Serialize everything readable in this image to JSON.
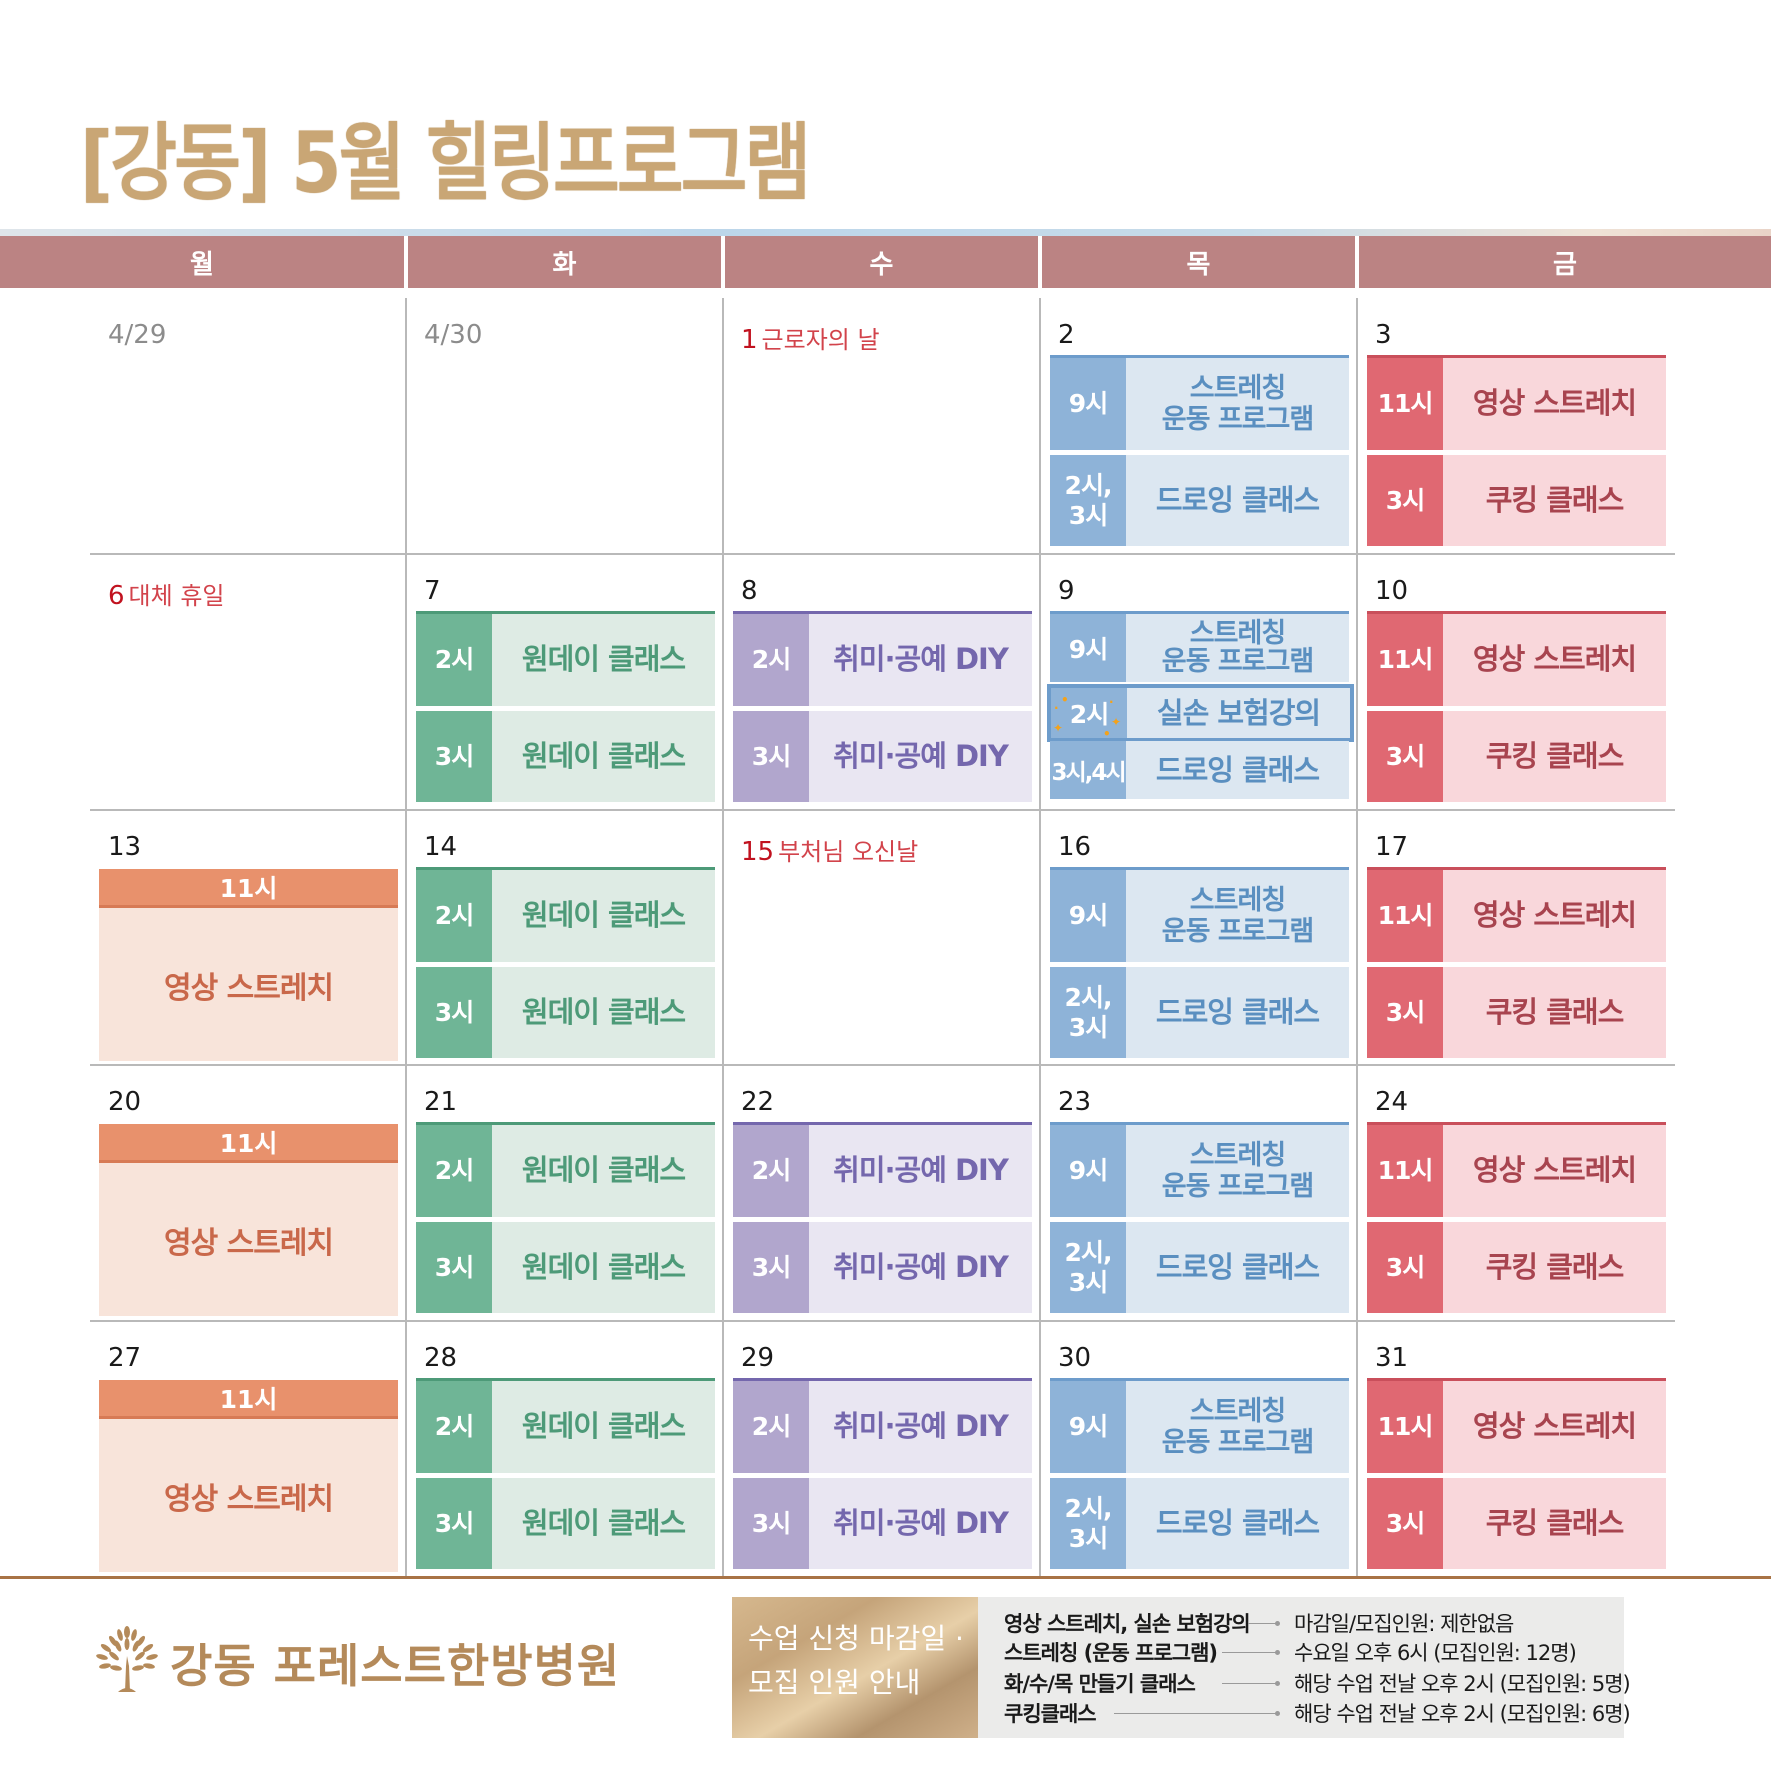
{
  "title": "[강동] 5월 힐링프로그램",
  "weekdays": [
    "월",
    "화",
    "수",
    "목",
    "금"
  ],
  "colors": {
    "title": "#c9a675",
    "header": "#bb8383",
    "holiday": "#c1121f",
    "stretch_blue": "#8eb3d8",
    "oneday_green": "#6fb596",
    "diy_purple": "#b1a6cd",
    "video_pink": "#e06872",
    "video_orange": "#e8916c"
  },
  "weeks": [
    {
      "mon": {
        "date": "4/29"
      },
      "tue": {
        "date": "4/30"
      },
      "wed": {
        "date": "1",
        "holiday": "근로자의 날"
      },
      "thu": {
        "date": "2",
        "events": [
          {
            "time": "9시",
            "name": "스트레칭\n운동 프로그램"
          },
          {
            "time": "2시,\n3시",
            "name": "드로잉 클래스"
          }
        ]
      },
      "fri": {
        "date": "3",
        "events": [
          {
            "time": "11시",
            "name": "영상 스트레치"
          },
          {
            "time": "3시",
            "name": "쿠킹 클래스"
          }
        ]
      }
    },
    {
      "mon": {
        "date": "6",
        "holiday": "대체 휴일"
      },
      "tue": {
        "date": "7",
        "events": [
          {
            "time": "2시",
            "name": "원데이 클래스"
          },
          {
            "time": "3시",
            "name": "원데이 클래스"
          }
        ]
      },
      "wed": {
        "date": "8",
        "events": [
          {
            "time": "2시",
            "name": "취미·공예 DIY"
          },
          {
            "time": "3시",
            "name": "취미·공예 DIY"
          }
        ]
      },
      "thu": {
        "date": "9",
        "events": [
          {
            "time": "9시",
            "name": "스트레칭\n운동 프로그램"
          },
          {
            "time": "2시",
            "name": "실손 보험강의"
          },
          {
            "time": "3시,4시",
            "name": "드로잉 클래스"
          }
        ]
      },
      "fri": {
        "date": "10",
        "events": [
          {
            "time": "11시",
            "name": "영상 스트레치"
          },
          {
            "time": "3시",
            "name": "쿠킹 클래스"
          }
        ]
      }
    },
    {
      "mon": {
        "date": "13",
        "events": [
          {
            "time": "11시",
            "name": "영상 스트레치"
          }
        ]
      },
      "tue": {
        "date": "14",
        "events": [
          {
            "time": "2시",
            "name": "원데이 클래스"
          },
          {
            "time": "3시",
            "name": "원데이 클래스"
          }
        ]
      },
      "wed": {
        "date": "15",
        "holiday": "부처님 오신날"
      },
      "thu": {
        "date": "16",
        "events": [
          {
            "time": "9시",
            "name": "스트레칭\n운동 프로그램"
          },
          {
            "time": "2시,\n3시",
            "name": "드로잉 클래스"
          }
        ]
      },
      "fri": {
        "date": "17",
        "events": [
          {
            "time": "11시",
            "name": "영상 스트레치"
          },
          {
            "time": "3시",
            "name": "쿠킹 클래스"
          }
        ]
      }
    },
    {
      "mon": {
        "date": "20",
        "events": [
          {
            "time": "11시",
            "name": "영상 스트레치"
          }
        ]
      },
      "tue": {
        "date": "21",
        "events": [
          {
            "time": "2시",
            "name": "원데이 클래스"
          },
          {
            "time": "3시",
            "name": "원데이 클래스"
          }
        ]
      },
      "wed": {
        "date": "22",
        "events": [
          {
            "time": "2시",
            "name": "취미·공예 DIY"
          },
          {
            "time": "3시",
            "name": "취미·공예 DIY"
          }
        ]
      },
      "thu": {
        "date": "23",
        "events": [
          {
            "time": "9시",
            "name": "스트레칭\n운동 프로그램"
          },
          {
            "time": "2시,\n3시",
            "name": "드로잉 클래스"
          }
        ]
      },
      "fri": {
        "date": "24",
        "events": [
          {
            "time": "11시",
            "name": "영상 스트레치"
          },
          {
            "time": "3시",
            "name": "쿠킹 클래스"
          }
        ]
      }
    },
    {
      "mon": {
        "date": "27",
        "events": [
          {
            "time": "11시",
            "name": "영상 스트레치"
          }
        ]
      },
      "tue": {
        "date": "28",
        "events": [
          {
            "time": "2시",
            "name": "원데이 클래스"
          },
          {
            "time": "3시",
            "name": "원데이 클래스"
          }
        ]
      },
      "wed": {
        "date": "29",
        "events": [
          {
            "time": "2시",
            "name": "취미·공예 DIY"
          },
          {
            "time": "3시",
            "name": "취미·공예 DIY"
          }
        ]
      },
      "thu": {
        "date": "30",
        "events": [
          {
            "time": "9시",
            "name": "스트레칭\n운동 프로그램"
          },
          {
            "time": "2시,\n3시",
            "name": "드로잉 클래스"
          }
        ]
      },
      "fri": {
        "date": "31",
        "events": [
          {
            "time": "11시",
            "name": "영상 스트레치"
          },
          {
            "time": "3시",
            "name": "쿠킹 클래스"
          }
        ]
      }
    }
  ],
  "footer": {
    "hospital_name": "강동 포레스트한방병원",
    "logo_icon": "tree-icon",
    "notice_title": "수업 신청 마감일 ·\n모집 인원 안내",
    "notices": [
      {
        "label": "영상 스트레치, 실손 보험강의",
        "value": "마감일/모집인원: 제한없음"
      },
      {
        "label": "스트레칭 (운동 프로그램)",
        "value": "수요일 오후 6시 (모집인원: 12명)"
      },
      {
        "label": "화/수/목 만들기 클래스",
        "value": "해당 수업 전날 오후 2시 (모집인원: 5명)"
      },
      {
        "label": "쿠킹클래스",
        "value": "해당 수업 전날 오후 2시 (모집인원: 6명)"
      }
    ]
  }
}
